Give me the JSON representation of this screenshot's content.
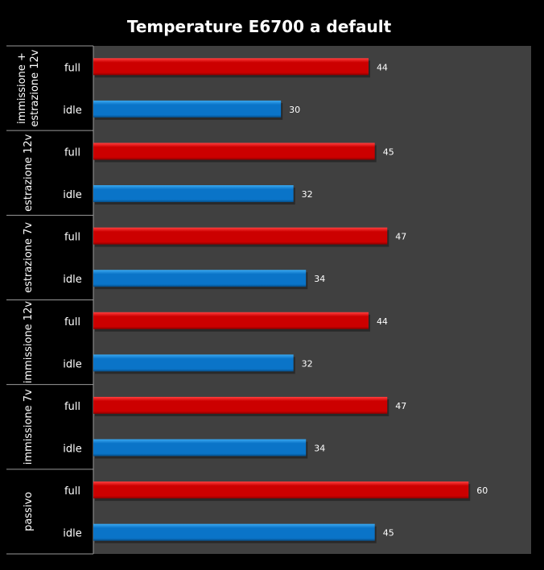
{
  "chart_data": {
    "type": "bar",
    "orientation": "horizontal",
    "title": "Temperature E6700 a default",
    "xlim": [
      0,
      70
    ],
    "grid": false,
    "groups": [
      {
        "label": [
          "immissione +",
          "estrazione 12v"
        ],
        "bars": [
          {
            "label": "full",
            "value": 44
          },
          {
            "label": "idle",
            "value": 30
          }
        ]
      },
      {
        "label": [
          "estrazione 12v"
        ],
        "bars": [
          {
            "label": "full",
            "value": 45
          },
          {
            "label": "idle",
            "value": 32
          }
        ]
      },
      {
        "label": [
          "estrazione 7v"
        ],
        "bars": [
          {
            "label": "full",
            "value": 47
          },
          {
            "label": "idle",
            "value": 34
          }
        ]
      },
      {
        "label": [
          "immissione 12v"
        ],
        "bars": [
          {
            "label": "full",
            "value": 44
          },
          {
            "label": "idle",
            "value": 32
          }
        ]
      },
      {
        "label": [
          "immissione 7v"
        ],
        "bars": [
          {
            "label": "full",
            "value": 47
          },
          {
            "label": "idle",
            "value": 34
          }
        ]
      },
      {
        "label": [
          "passivo"
        ],
        "bars": [
          {
            "label": "full",
            "value": 60
          },
          {
            "label": "idle",
            "value": 45
          }
        ]
      }
    ],
    "colors": {
      "full": "#cc0000",
      "full_light": "#ff4040",
      "idle": "#0a74c8",
      "idle_light": "#3aa8f0",
      "plot_bg": "#404040"
    }
  }
}
